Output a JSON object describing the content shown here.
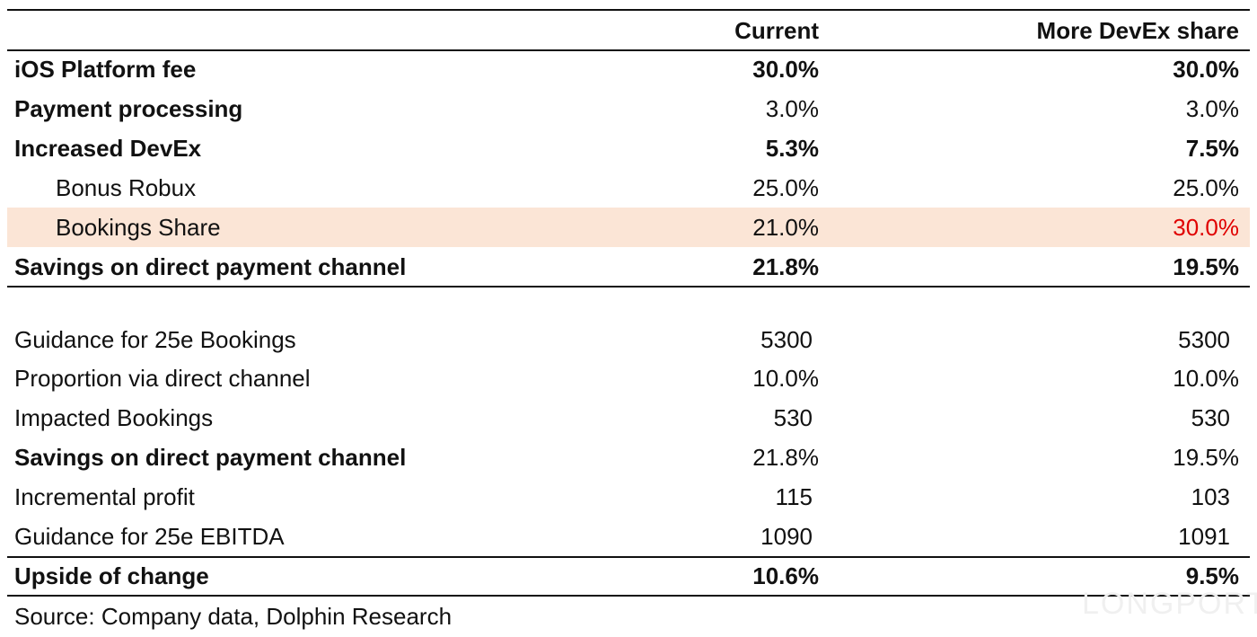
{
  "table": {
    "columns": [
      "Current",
      "More DevEx share"
    ],
    "rows": [
      [
        "iOS Platform fee",
        "30.0%",
        "30.0%"
      ],
      [
        "Payment processing",
        "3.0%",
        "3.0%"
      ],
      [
        "Increased DevEx",
        "5.3%",
        "7.5%"
      ],
      [
        "Bonus Robux",
        "25.0%",
        "25.0%"
      ],
      [
        "Bookings Share",
        "21.0%",
        "30.0%"
      ],
      [
        "Savings on direct payment channel",
        "21.8%",
        "19.5%"
      ]
    ],
    "rows2": [
      [
        "Guidance for 25e Bookings",
        "5300",
        "5300"
      ],
      [
        "Proportion via direct channel",
        "10.0%",
        "10.0%"
      ],
      [
        "Impacted Bookings",
        "530",
        "530"
      ],
      [
        "Savings on direct payment channel",
        "21.8%",
        "19.5%"
      ],
      [
        "Incremental profit",
        "115",
        "103"
      ],
      [
        "Guidance for 25e EBITDA",
        "1090",
        "1091"
      ],
      [
        "Upside of change",
        "10.6%",
        "9.5%"
      ]
    ]
  },
  "source": "Source: Company data, Dolphin Research",
  "watermark": "LONGPORT"
}
